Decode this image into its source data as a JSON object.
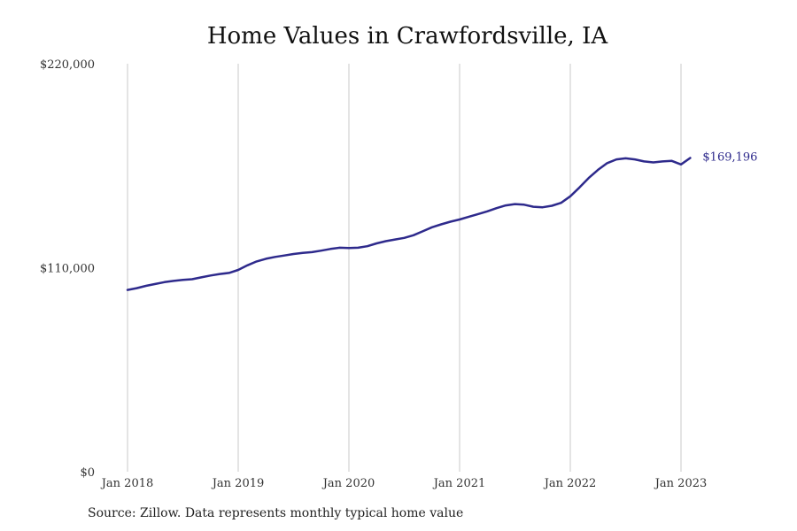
{
  "chart_data": {
    "type": "line",
    "title": "Home Values in Crawfordsville, IA",
    "source_note": "Source: Zillow. Data represents monthly typical home value",
    "xlabel": "",
    "ylabel": "",
    "ylim": [
      0,
      220000
    ],
    "y_ticks": [
      {
        "value": 0,
        "label": "$0"
      },
      {
        "value": 110000,
        "label": "$110,000"
      },
      {
        "value": 220000,
        "label": "$220,000"
      }
    ],
    "x_ticks": [
      {
        "date": "2018-01",
        "label": "Jan 2018"
      },
      {
        "date": "2019-01",
        "label": "Jan 2019"
      },
      {
        "date": "2020-01",
        "label": "Jan 2020"
      },
      {
        "date": "2021-01",
        "label": "Jan 2021"
      },
      {
        "date": "2022-01",
        "label": "Jan 2022"
      },
      {
        "date": "2023-01",
        "label": "Jan 2023"
      }
    ],
    "grid": "vertical",
    "line_color": "#2e2a8c",
    "end_label": "$169,196",
    "series": [
      {
        "x": [
          "2018-01",
          "2018-02",
          "2018-03",
          "2018-04",
          "2018-05",
          "2018-06",
          "2018-07",
          "2018-08",
          "2018-09",
          "2018-10",
          "2018-11",
          "2018-12",
          "2019-01",
          "2019-02",
          "2019-03",
          "2019-04",
          "2019-05",
          "2019-06",
          "2019-07",
          "2019-08",
          "2019-09",
          "2019-10",
          "2019-11",
          "2019-12",
          "2020-01",
          "2020-02",
          "2020-03",
          "2020-04",
          "2020-05",
          "2020-06",
          "2020-07",
          "2020-08",
          "2020-09",
          "2020-10",
          "2020-11",
          "2020-12",
          "2021-01",
          "2021-02",
          "2021-03",
          "2021-04",
          "2021-05",
          "2021-06",
          "2021-07",
          "2021-08",
          "2021-09",
          "2021-10",
          "2021-11",
          "2021-12",
          "2022-01",
          "2022-02",
          "2022-03",
          "2022-04",
          "2022-05",
          "2022-06",
          "2022-07",
          "2022-08",
          "2022-09",
          "2022-10",
          "2022-11",
          "2022-12",
          "2023-01",
          "2023-02"
        ],
        "values": [
          98000,
          99000,
          100200,
          101200,
          102200,
          102900,
          103400,
          103800,
          104800,
          105800,
          106600,
          107200,
          108800,
          111300,
          113400,
          114800,
          115800,
          116600,
          117400,
          118000,
          118400,
          119200,
          120100,
          120800,
          120600,
          120800,
          121600,
          123100,
          124300,
          125200,
          126100,
          127500,
          129600,
          131800,
          133400,
          134800,
          136000,
          137500,
          138900,
          140400,
          142100,
          143600,
          144300,
          144000,
          142900,
          142600,
          143400,
          145000,
          148500,
          153300,
          158400,
          162800,
          166400,
          168400,
          169000,
          168400,
          167300,
          166800,
          167300,
          167600,
          165700,
          169196
        ]
      }
    ]
  }
}
